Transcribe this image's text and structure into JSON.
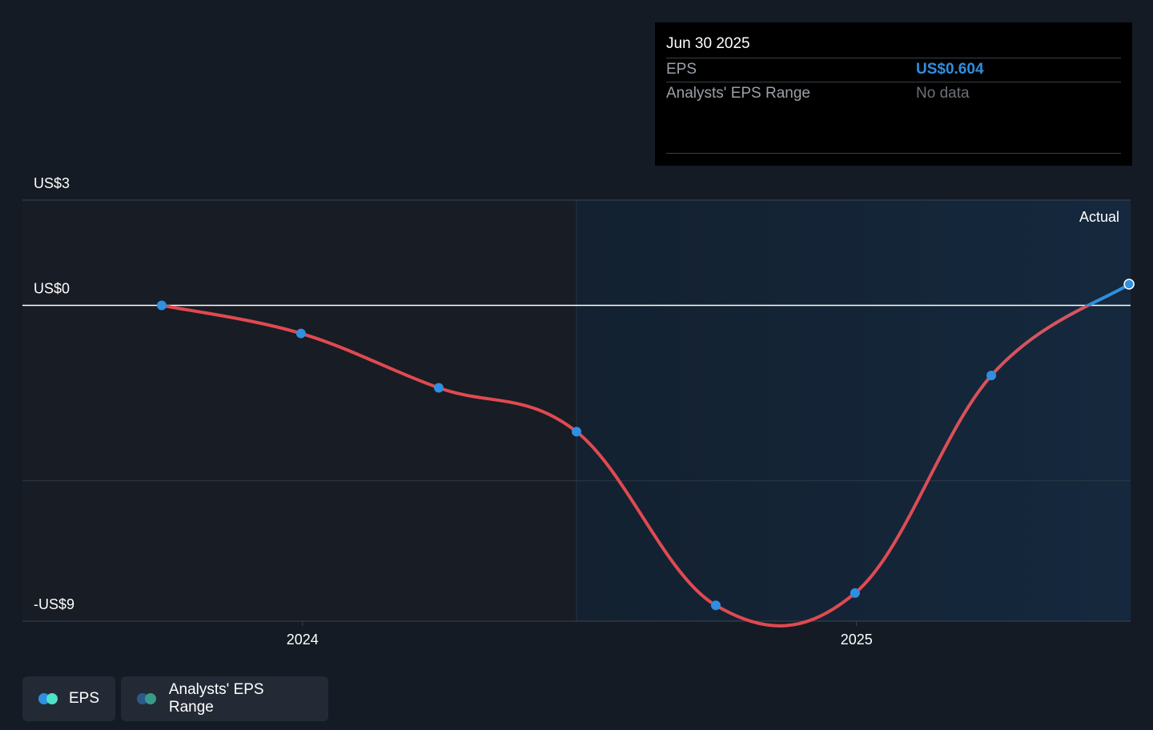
{
  "tooltip": {
    "date": "Jun 30 2025",
    "eps_label": "EPS",
    "eps_value": "US$0.604",
    "range_label": "Analysts' EPS Range",
    "range_value": "No data"
  },
  "region_label": "Actual",
  "legend": {
    "eps_label": "EPS",
    "range_label": "Analysts' EPS Range"
  },
  "colors": {
    "background": "#151b24",
    "past_region": "#181c24",
    "actual_region": "#15263a",
    "negative_line": "#e04a50",
    "positive_line": "#2f8fe0",
    "point": "#2f8fe0",
    "legend_eps_dot_1": "#2f8fe0",
    "legend_eps_dot_2": "#4fe0c8",
    "legend_range_dot_1": "#2a5a8a",
    "legend_range_dot_2": "#3a9a8a"
  },
  "chart_data": {
    "type": "line",
    "title": "",
    "xlabel": "",
    "ylabel": "",
    "y_tick_labels": [
      "US$3",
      "US$0",
      "-US$9"
    ],
    "y_ticks": [
      3,
      0,
      -9
    ],
    "x_tick_labels": [
      "2024",
      "2025"
    ],
    "x_ticks": [
      "2024-01-01",
      "2025-01-01"
    ],
    "ylim": [
      -9,
      3
    ],
    "xlim": [
      "2023-06-30",
      "2025-07-01"
    ],
    "actual_region_start": "2024-06-30",
    "grid": true,
    "series": [
      {
        "name": "EPS",
        "x": [
          "2023-09-30",
          "2023-12-31",
          "2024-03-31",
          "2024-06-30",
          "2024-09-30",
          "2024-12-31",
          "2025-03-31",
          "2025-06-30"
        ],
        "y": [
          0.0,
          -0.8,
          -2.35,
          -3.6,
          -8.55,
          -8.2,
          -2.0,
          0.604
        ]
      }
    ]
  }
}
